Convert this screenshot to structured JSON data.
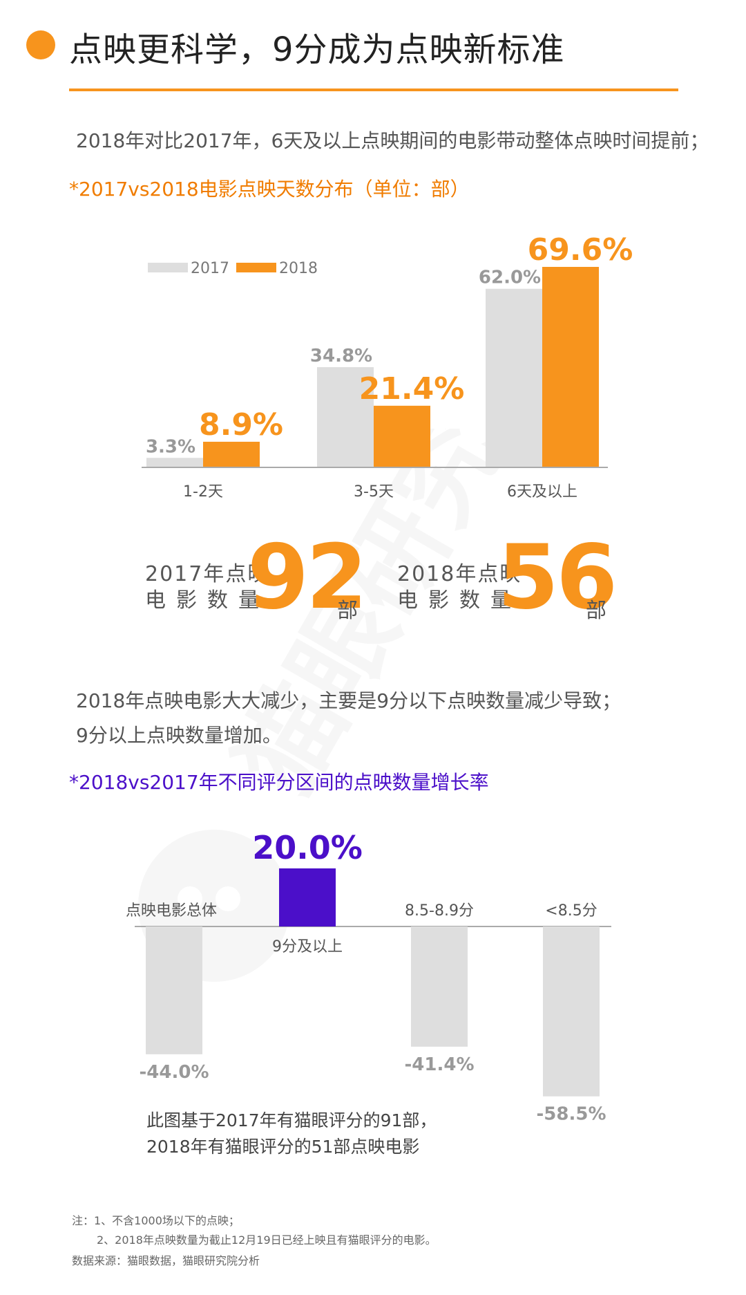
{
  "title": "点映更科学，9分成为点映新标准",
  "section1": {
    "description": "2018年对比2017年，6天及以上点映期间的电影带动整体点映时间提前；",
    "subtitle": "*2017vs2018电影点映天数分布（单位：部）"
  },
  "counts": {
    "left": {
      "label_line1": "2017年点映",
      "label_line2": "电影数量",
      "number": "92",
      "unit": "部"
    },
    "right": {
      "label_line1": "2018年点映",
      "label_line2": "电影数量",
      "number": "56",
      "unit": "部"
    }
  },
  "section2": {
    "description_line1": "2018年点映电影大大减少，主要是9分以下点映数量减少导致；",
    "description_line2": "9分以上点映数量增加。",
    "subtitle": "*2018vs2017年不同评分区间的点映数量增长率"
  },
  "chart_note": {
    "line1": "此图基于2017年有猫眼评分的91部，",
    "line2": "2018年有猫眼评分的51部点映电影"
  },
  "footnotes": {
    "line1": "注：1、不含1000场以下的点映；",
    "line2": "2、2018年点映数量为截止12月19日已经上映且有猫眼评分的电影。",
    "line3": "数据来源：猫眼数据，猫眼研究院分析"
  },
  "watermark": {
    "text": "猫眼研究院"
  },
  "colors": {
    "orange": "#f7941d",
    "gray": "#dedede",
    "purple": "#4b0fc9",
    "text": "#555555"
  },
  "chart_data": [
    {
      "type": "bar",
      "categories": [
        "1-2天",
        "3-5天",
        "6天及以上"
      ],
      "series": [
        {
          "name": "2017",
          "values": [
            3.3,
            34.8,
            62.0
          ],
          "labels": [
            "3.3%",
            "34.8%",
            "62.0%"
          ],
          "color": "#dedede"
        },
        {
          "name": "2018",
          "values": [
            8.9,
            21.4,
            69.6
          ],
          "labels": [
            "8.9%",
            "21.4%",
            "69.6%"
          ],
          "color": "#f7941d"
        }
      ],
      "ylim": [
        0,
        72
      ],
      "legend_position": "top-left",
      "grid": false
    },
    {
      "type": "bar",
      "categories": [
        "点映电影总体",
        "9分及以上",
        "8.5-8.9分",
        "<8.5分"
      ],
      "values": [
        -44.0,
        20.0,
        -41.4,
        -58.5
      ],
      "labels": [
        "-44.0%",
        "20.0%",
        "-41.4%",
        "-58.5%"
      ],
      "colors": [
        "#dedede",
        "#4b0fc9",
        "#dedede",
        "#dedede"
      ],
      "ylim": [
        -60,
        20
      ],
      "grid": false
    }
  ]
}
